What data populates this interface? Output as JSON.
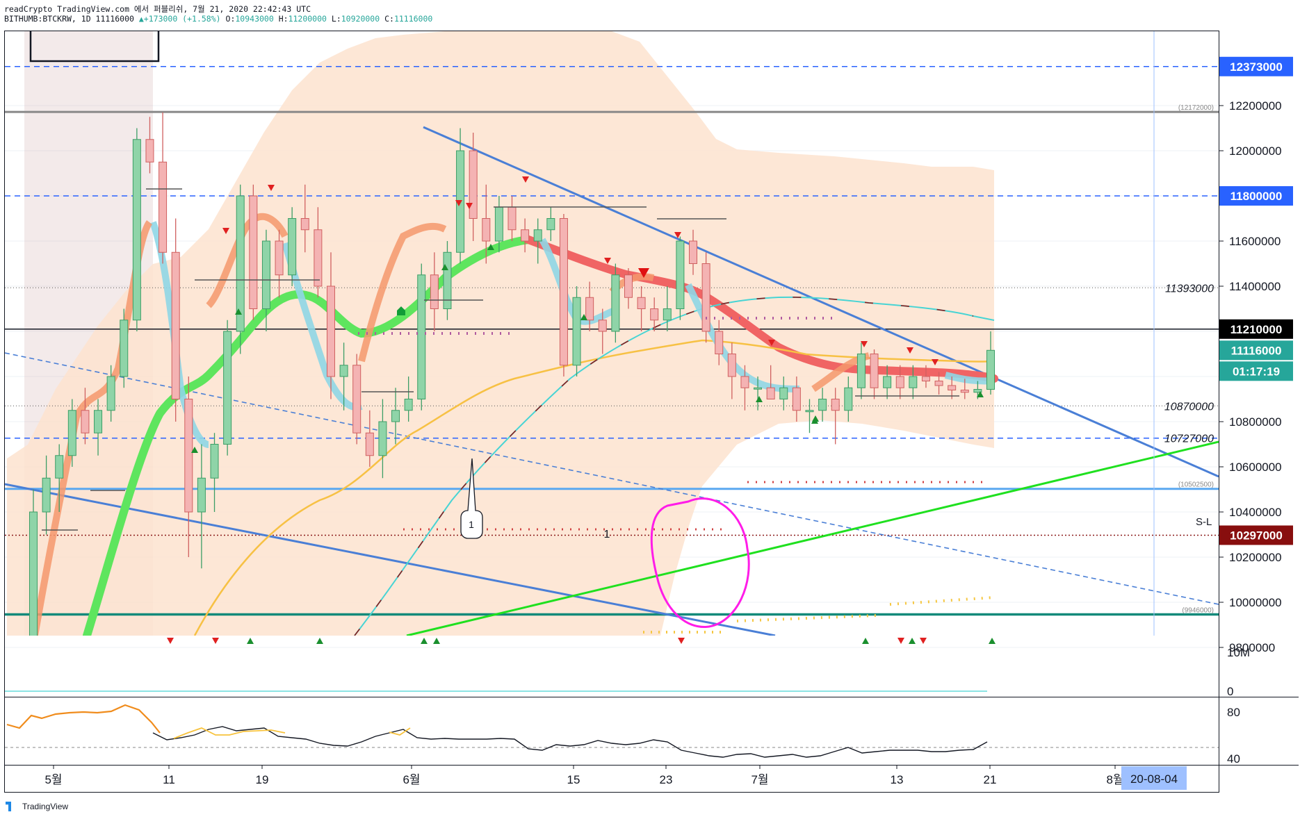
{
  "header": {
    "line1": "readCrypto TradingView.com 에서 퍼블리쉬, 7월 21, 2020 22:42:43 UTC",
    "symbol": "BITHUMB:BTCKRW, 1D 11116000",
    "change": "▲+173000 (+1.58%)",
    "o_label": "O:",
    "o_val": "10943000",
    "h_label": "H:",
    "h_val": "11200000",
    "l_label": "L:",
    "l_val": "10920000",
    "c_label": "C:",
    "c_val": "11116000"
  },
  "price_axis": {
    "ticks": [
      "12200000",
      "12000000",
      "11800000",
      "11600000",
      "11400000",
      "11200000",
      "11000000",
      "10800000",
      "10600000",
      "10400000",
      "10200000",
      "10000000",
      "9800000"
    ],
    "tick_values": [
      12200000,
      12000000,
      11800000,
      11600000,
      11400000,
      11200000,
      11000000,
      10800000,
      10600000,
      10400000,
      10200000,
      10000000,
      9800000
    ],
    "badges": [
      {
        "text": "12373000",
        "value": 12373000,
        "bg": "#2962ff",
        "fg": "#ffffff"
      },
      {
        "text": "11800000",
        "value": 11800000,
        "bg": "#2962ff",
        "fg": "#ffffff"
      },
      {
        "text": "11210000",
        "value": 11210000,
        "bg": "#000000",
        "fg": "#ffffff"
      },
      {
        "text": "11116000",
        "value": 11116000,
        "bg": "#26a69a",
        "fg": "#ffffff"
      },
      {
        "text": "10297000",
        "value": 10297000,
        "bg": "#880e0e",
        "fg": "#ffffff"
      }
    ],
    "countdown": "01:17:19",
    "plain_labels": [
      {
        "text": "11393000",
        "value": 11393000
      },
      {
        "text": "10870000",
        "value": 10870000
      },
      {
        "text": "10727000",
        "value": 10727000
      }
    ],
    "small_labels": [
      {
        "text": "(12172000)",
        "value": 12172000
      },
      {
        "text": "(10502500)",
        "value": 10502500
      },
      {
        "text": "(9946000)",
        "value": 9946000
      }
    ],
    "sl_label": "S-L"
  },
  "volume_axis": {
    "ticks": [
      "10M",
      "0"
    ]
  },
  "osc_axis": {
    "ticks": [
      "80",
      "40"
    ]
  },
  "x_axis": {
    "labels": [
      "5월",
      "11",
      "19",
      "6월",
      "15",
      "23",
      "7월",
      "13",
      "21",
      "8월"
    ],
    "date_badge": "20-08-04"
  },
  "annotations": {
    "marker_1a": "1",
    "marker_1b": "1"
  },
  "logo": "TradingView",
  "chart_data": {
    "type": "candlestick",
    "symbol": "BITHUMB:BTCKRW",
    "timeframe": "1D",
    "ylim": [
      9800000,
      12400000
    ],
    "ohlc_last": {
      "open": 10943000,
      "high": 11200000,
      "low": 10920000,
      "close": 11116000,
      "change": 173000,
      "change_pct": 1.58
    },
    "candles": [
      [
        9800000,
        10500000,
        9800000,
        10400000
      ],
      [
        10400000,
        10650000,
        10300000,
        10550000
      ],
      [
        10550000,
        10700000,
        10400000,
        10650000
      ],
      [
        10650000,
        10900000,
        10600000,
        10850000
      ],
      [
        10850000,
        10950000,
        10700000,
        10750000
      ],
      [
        10750000,
        10900000,
        10650000,
        10850000
      ],
      [
        10850000,
        11050000,
        10800000,
        11000000
      ],
      [
        11000000,
        11300000,
        10950000,
        11250000
      ],
      [
        11250000,
        12100000,
        11200000,
        12050000
      ],
      [
        12050000,
        12150000,
        11900000,
        11950000
      ],
      [
        11950000,
        12170000,
        11500000,
        11550000
      ],
      [
        11550000,
        11700000,
        10800000,
        10900000
      ],
      [
        10900000,
        11000000,
        10200000,
        10400000
      ],
      [
        10400000,
        10700000,
        10150000,
        10550000
      ],
      [
        10550000,
        10750000,
        10400000,
        10700000
      ],
      [
        10700000,
        11250000,
        10650000,
        11200000
      ],
      [
        11200000,
        11850000,
        11100000,
        11800000
      ],
      [
        11800000,
        11850000,
        11250000,
        11300000
      ],
      [
        11300000,
        11650000,
        11200000,
        11600000
      ],
      [
        11600000,
        11650000,
        11350000,
        11450000
      ],
      [
        11450000,
        11750000,
        11400000,
        11700000
      ],
      [
        11700000,
        11850000,
        11550000,
        11650000
      ],
      [
        11650000,
        11750000,
        11350000,
        11400000
      ],
      [
        11400000,
        11550000,
        10900000,
        11000000
      ],
      [
        11000000,
        11150000,
        10850000,
        11050000
      ],
      [
        11050000,
        11100000,
        10700000,
        10750000
      ],
      [
        10750000,
        10850000,
        10600000,
        10650000
      ],
      [
        10650000,
        10900000,
        10550000,
        10800000
      ],
      [
        10800000,
        10950000,
        10700000,
        10850000
      ],
      [
        10850000,
        11000000,
        10800000,
        10900000
      ],
      [
        10900000,
        11500000,
        10850000,
        11450000
      ],
      [
        11450000,
        11550000,
        11200000,
        11300000
      ],
      [
        11300000,
        11600000,
        11250000,
        11550000
      ],
      [
        11550000,
        12100000,
        11500000,
        12000000
      ],
      [
        12000000,
        12080000,
        11600000,
        11700000
      ],
      [
        11700000,
        11850000,
        11500000,
        11600000
      ],
      [
        11600000,
        11800000,
        11550000,
        11750000
      ],
      [
        11750000,
        11800000,
        11600000,
        11650000
      ],
      [
        11650000,
        11700000,
        11550000,
        11600000
      ],
      [
        11600000,
        11700000,
        11500000,
        11650000
      ],
      [
        11650000,
        11750000,
        11600000,
        11700000
      ],
      [
        11700000,
        11720000,
        11000000,
        11050000
      ],
      [
        11050000,
        11400000,
        11000000,
        11350000
      ],
      [
        11350000,
        11420000,
        11200000,
        11250000
      ],
      [
        11250000,
        11300000,
        11100000,
        11200000
      ],
      [
        11200000,
        11500000,
        11150000,
        11450000
      ],
      [
        11450000,
        11480000,
        11300000,
        11350000
      ],
      [
        11350000,
        11400000,
        11200000,
        11300000
      ],
      [
        11300000,
        11350000,
        11200000,
        11250000
      ],
      [
        11250000,
        11400000,
        11200000,
        11300000
      ],
      [
        11300000,
        11620000,
        11250000,
        11600000
      ],
      [
        11600000,
        11650000,
        11450000,
        11500000
      ],
      [
        11500000,
        11550000,
        11150000,
        11200000
      ],
      [
        11200000,
        11250000,
        11050000,
        11100000
      ],
      [
        11100000,
        11150000,
        10900000,
        11000000
      ],
      [
        11000000,
        11050000,
        10850000,
        10950000
      ],
      [
        10950000,
        11000000,
        10850000,
        10950000
      ],
      [
        10950000,
        11050000,
        10900000,
        10900000
      ],
      [
        10900000,
        11000000,
        10850000,
        10950000
      ],
      [
        10950000,
        11000000,
        10800000,
        10850000
      ],
      [
        10850000,
        10900000,
        10750000,
        10850000
      ],
      [
        10850000,
        10950000,
        10800000,
        10900000
      ],
      [
        10900000,
        10950000,
        10700000,
        10850000
      ],
      [
        10850000,
        11000000,
        10800000,
        10950000
      ],
      [
        10950000,
        11150000,
        10900000,
        11100000
      ],
      [
        11100000,
        11120000,
        10900000,
        10950000
      ],
      [
        10950000,
        11050000,
        10900000,
        11000000
      ],
      [
        11000000,
        11050000,
        10900000,
        10950000
      ],
      [
        10950000,
        11050000,
        10900000,
        11000000
      ],
      [
        11000000,
        11050000,
        10950000,
        10980000
      ],
      [
        10980000,
        11020000,
        10920000,
        10960000
      ],
      [
        10960000,
        11000000,
        10900000,
        10940000
      ],
      [
        10940000,
        10990000,
        10900000,
        10930000
      ],
      [
        10930000,
        10980000,
        10900000,
        10943000
      ],
      [
        10943000,
        11200000,
        10920000,
        11116000
      ]
    ],
    "horizontal_levels": [
      12373000,
      12172000,
      11800000,
      11393000,
      11210000,
      10870000,
      10727000,
      10502500,
      10297000,
      9946000
    ],
    "oscillator": {
      "levels": [
        80,
        40
      ]
    }
  }
}
